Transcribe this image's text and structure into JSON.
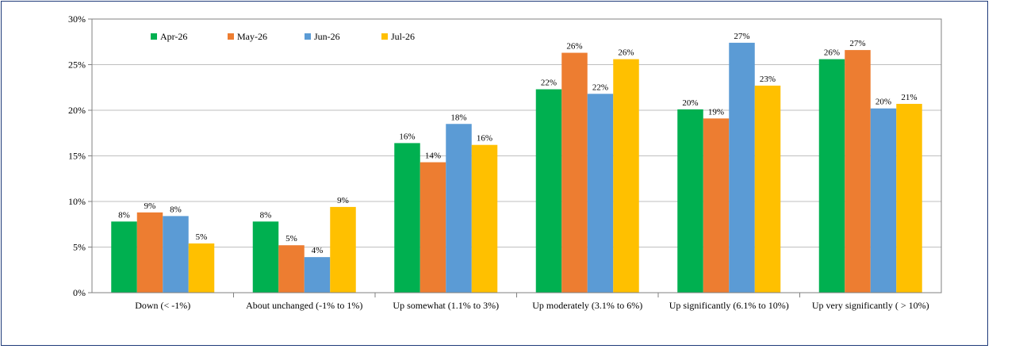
{
  "chart_data": {
    "type": "bar",
    "categories": [
      "Down (< -1%)",
      "About unchanged (-1% to 1%)",
      "Up somewhat (1.1% to 3%)",
      "Up moderately (3.1% to 6%)",
      "Up significantly (6.1% to 10%)",
      "Up very significantly ( > 10%)"
    ],
    "series": [
      {
        "name": "Apr-26",
        "color": "#00B050",
        "values": [
          7.8,
          7.8,
          16.4,
          22.3,
          20.1,
          25.6
        ],
        "labels": [
          "8%",
          "8%",
          "16%",
          "22%",
          "20%",
          "26%"
        ]
      },
      {
        "name": "May-26",
        "color": "#ED7D31",
        "values": [
          8.8,
          5.2,
          14.3,
          26.3,
          19.1,
          26.6
        ],
        "labels": [
          "9%",
          "5%",
          "14%",
          "26%",
          "19%",
          "27%"
        ]
      },
      {
        "name": "Jun-26",
        "color": "#5B9BD5",
        "values": [
          8.4,
          3.9,
          18.5,
          21.8,
          27.4,
          20.2
        ],
        "labels": [
          "8%",
          "4%",
          "18%",
          "22%",
          "27%",
          "20%"
        ]
      },
      {
        "name": "Jul-26",
        "color": "#FFC000",
        "values": [
          5.4,
          9.4,
          16.2,
          25.6,
          22.7,
          20.7
        ],
        "labels": [
          "5%",
          "9%",
          "16%",
          "26%",
          "23%",
          "21%"
        ]
      }
    ],
    "ylim": [
      0,
      30
    ],
    "yticks": [
      "0%",
      "5%",
      "10%",
      "15%",
      "20%",
      "25%",
      "30%"
    ],
    "grid": true,
    "legend": "top-left"
  }
}
